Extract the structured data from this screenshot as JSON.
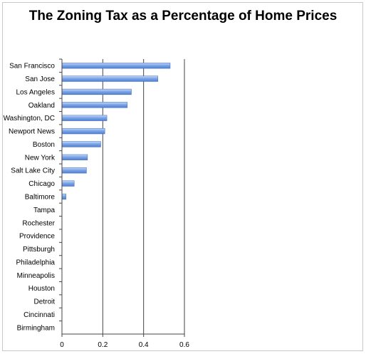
{
  "chart_data": {
    "type": "bar",
    "orientation": "horizontal",
    "title": "The Zoning Tax as a Percentage of Home Prices",
    "xlabel": "",
    "ylabel": "",
    "categories": [
      "San Francisco",
      "San Jose",
      "Los Angeles",
      "Oakland",
      "Washington, DC",
      "Newport News",
      "Boston",
      "New York",
      "Salt Lake City",
      "Chicago",
      "Baltimore",
      "Tampa",
      "Rochester",
      "Providence",
      "Pittsburgh",
      "Philadelphia",
      "Minneapolis",
      "Houston",
      "Detroit",
      "Cincinnati",
      "Birmingham"
    ],
    "values": [
      0.53,
      0.47,
      0.34,
      0.32,
      0.22,
      0.21,
      0.19,
      0.125,
      0.12,
      0.06,
      0.02,
      0,
      0,
      0,
      0,
      0,
      0,
      0,
      0,
      0,
      0
    ],
    "xlim": [
      0,
      0.6
    ],
    "xticks": [
      0,
      0.2,
      0.4,
      0.6
    ],
    "xtick_labels": [
      "0",
      "0.2",
      "0.4",
      "0.6"
    ],
    "grid": "vertical",
    "legend": "none",
    "bar_color": "#6f9ae0"
  }
}
